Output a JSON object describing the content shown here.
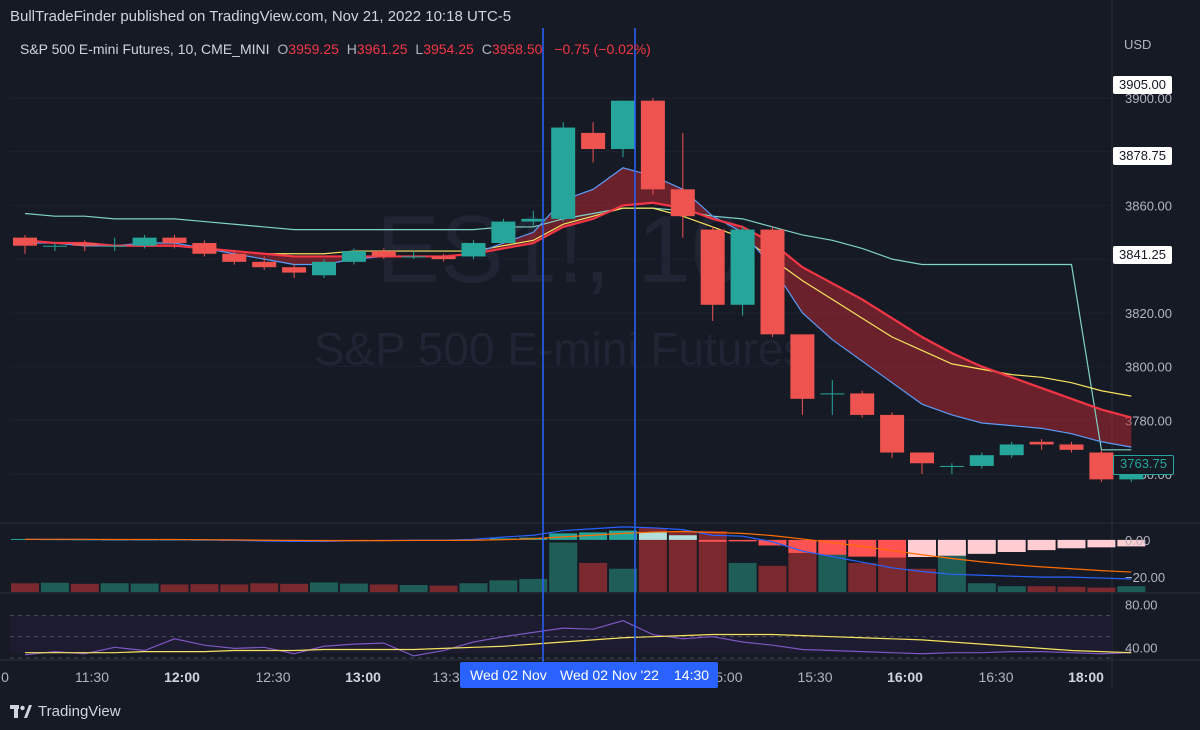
{
  "header": {
    "published_by": "BullTradeFinder published on TradingView.com, Nov 21, 2022 10:18 UTC-5"
  },
  "symbol": {
    "name": "S&P 500 E-mini Futures, 10, CME_MINI",
    "open": "3959.25",
    "high": "3961.25",
    "low": "3954.25",
    "close": "3958.50",
    "change": "−0.75 (−0.02%)",
    "currency": "USD"
  },
  "watermark": {
    "ticker": "ES1!, 10",
    "name": "S&P 500 E-mini Futures"
  },
  "price_tags": [
    {
      "label": "3905.00",
      "style": "white",
      "price": 3905
    },
    {
      "label": "3878.75",
      "style": "white",
      "price": 3878.75
    },
    {
      "label": "3841.25",
      "style": "white",
      "price": 3841.25
    },
    {
      "label": "3763.75",
      "style": "dark",
      "price": 3763.75
    }
  ],
  "crosshair": {
    "date_left": "Wed 02 Nov",
    "date_right": "Wed 02 Nov '22",
    "time_right": "14:30"
  },
  "footer": {
    "brand": "TradingView"
  },
  "colors": {
    "background": "#161a25",
    "up": "#26a69a",
    "down": "#ef5350",
    "crosshair": "#2962ff",
    "ema_yellow": "#f7e35f",
    "ema_teal": "#7fd3c6",
    "ema_blue": "#5b9cf6",
    "ema_red": "#f23645",
    "rsi": "#7e57c2"
  },
  "chart_data": [
    {
      "type": "candlestick",
      "title": "S&P 500 E-mini Futures, 10, CME_MINI",
      "ylabel": "USD",
      "y_axis_ticks": [
        3760,
        3780,
        3800,
        3820,
        3840,
        3860,
        3880,
        3900
      ],
      "x_axis_ticks": [
        "0",
        "11:30",
        "12:00",
        "12:30",
        "13:00",
        "13:3",
        "15:00",
        "15:30",
        "16:00",
        "16:30",
        "18:00"
      ],
      "ylim": [
        3752,
        3910
      ],
      "candles": [
        {
          "o": 3848,
          "h": 3849,
          "l": 3842,
          "c": 3845
        },
        {
          "o": 3845,
          "h": 3846,
          "l": 3843,
          "c": 3845
        },
        {
          "o": 3846,
          "h": 3847,
          "l": 3843,
          "c": 3845
        },
        {
          "o": 3845,
          "h": 3848,
          "l": 3843,
          "c": 3845
        },
        {
          "o": 3845,
          "h": 3849,
          "l": 3844,
          "c": 3848
        },
        {
          "o": 3848,
          "h": 3849,
          "l": 3844,
          "c": 3846
        },
        {
          "o": 3846,
          "h": 3847,
          "l": 3841,
          "c": 3842
        },
        {
          "o": 3842,
          "h": 3843,
          "l": 3838,
          "c": 3839
        },
        {
          "o": 3839,
          "h": 3841,
          "l": 3836,
          "c": 3837
        },
        {
          "o": 3837,
          "h": 3838,
          "l": 3833,
          "c": 3835
        },
        {
          "o": 3834,
          "h": 3840,
          "l": 3833,
          "c": 3839
        },
        {
          "o": 3839,
          "h": 3844,
          "l": 3838,
          "c": 3843
        },
        {
          "o": 3843,
          "h": 3844,
          "l": 3840,
          "c": 3841
        },
        {
          "o": 3841,
          "h": 3843,
          "l": 3840,
          "c": 3841
        },
        {
          "o": 3841,
          "h": 3842,
          "l": 3839,
          "c": 3840
        },
        {
          "o": 3841,
          "h": 3847,
          "l": 3840,
          "c": 3846
        },
        {
          "o": 3846,
          "h": 3855,
          "l": 3846,
          "c": 3854
        },
        {
          "o": 3854,
          "h": 3858,
          "l": 3852,
          "c": 3855
        },
        {
          "o": 3855,
          "h": 3891,
          "l": 3854,
          "c": 3889
        },
        {
          "o": 3887,
          "h": 3891,
          "l": 3876,
          "c": 3881
        },
        {
          "o": 3881,
          "h": 3899,
          "l": 3878,
          "c": 3899
        },
        {
          "o": 3899,
          "h": 3900,
          "l": 3864,
          "c": 3866
        },
        {
          "o": 3866,
          "h": 3887,
          "l": 3848,
          "c": 3856
        },
        {
          "o": 3851,
          "h": 3852,
          "l": 3817,
          "c": 3823
        },
        {
          "o": 3823,
          "h": 3852,
          "l": 3819,
          "c": 3851
        },
        {
          "o": 3851,
          "h": 3852,
          "l": 3811,
          "c": 3812
        },
        {
          "o": 3812,
          "h": 3812,
          "l": 3782,
          "c": 3788
        },
        {
          "o": 3790,
          "h": 3795,
          "l": 3782,
          "c": 3790
        },
        {
          "o": 3790,
          "h": 3791,
          "l": 3781,
          "c": 3782
        },
        {
          "o": 3782,
          "h": 3783,
          "l": 3766,
          "c": 3768
        },
        {
          "o": 3768,
          "h": 3768,
          "l": 3760,
          "c": 3764
        },
        {
          "o": 3763,
          "h": 3764,
          "l": 3760,
          "c": 3763
        },
        {
          "o": 3763,
          "h": 3768,
          "l": 3762,
          "c": 3767
        },
        {
          "o": 3767,
          "h": 3772,
          "l": 3766,
          "c": 3771
        },
        {
          "o": 3772,
          "h": 3773,
          "l": 3769,
          "c": 3771
        },
        {
          "o": 3771,
          "h": 3772,
          "l": 3768,
          "c": 3769
        },
        {
          "o": 3768,
          "h": 3769,
          "l": 3757,
          "c": 3758
        },
        {
          "o": 3758,
          "h": 3766,
          "l": 3757,
          "c": 3763.75
        }
      ],
      "ema_yellow": [
        3847,
        3846,
        3845,
        3845,
        3845,
        3845,
        3844,
        3843,
        3842,
        3842,
        3842,
        3843,
        3843,
        3843,
        3843,
        3843,
        3845,
        3847,
        3853,
        3856,
        3859,
        3859,
        3856,
        3852,
        3848,
        3840,
        3832,
        3825,
        3818,
        3811,
        3806,
        3801,
        3799,
        3797,
        3796,
        3794,
        3791,
        3789
      ],
      "ema_teal": [
        3857,
        3856,
        3856,
        3855,
        3855,
        3855,
        3854,
        3853,
        3852,
        3851,
        3851,
        3851,
        3851,
        3851,
        3851,
        3851,
        3852,
        3852,
        3855,
        3857,
        3859,
        3859,
        3858,
        3856,
        3855,
        3852,
        3849,
        3847,
        3844,
        3840,
        3838,
        3838,
        3838,
        3838,
        3838,
        3838,
        3769,
        3769
      ],
      "ema_blue": [
        3846,
        3846,
        3845,
        3845,
        3846,
        3846,
        3844,
        3842,
        3840,
        3838,
        3838,
        3840,
        3841,
        3841,
        3841,
        3842,
        3846,
        3850,
        3862,
        3866,
        3874,
        3871,
        3866,
        3856,
        3850,
        3837,
        3820,
        3810,
        3802,
        3794,
        3786,
        3782,
        3779,
        3778,
        3777,
        3775,
        3772,
        3770
      ],
      "ema_red": [
        3847,
        3846,
        3846,
        3845,
        3845,
        3845,
        3844,
        3843,
        3842,
        3841,
        3841,
        3841,
        3841,
        3841,
        3841,
        3842,
        3844,
        3846,
        3852,
        3855,
        3860,
        3861,
        3859,
        3855,
        3852,
        3846,
        3837,
        3831,
        3825,
        3818,
        3811,
        3805,
        3800,
        3796,
        3792,
        3788,
        3784,
        3781
      ]
    },
    {
      "type": "bar",
      "title": "MACD",
      "y_axis_ticks": [
        0,
        -20
      ],
      "ylim": [
        -28,
        8
      ],
      "histogram": [
        0.5,
        0.4,
        0.3,
        0.2,
        0.2,
        0.2,
        0.1,
        -0.1,
        -0.3,
        -0.4,
        -0.4,
        -0.2,
        -0.1,
        -0.1,
        -0.1,
        0.2,
        0.8,
        1.2,
        3.5,
        4.0,
        5.0,
        4.0,
        2.5,
        -1.0,
        -0.8,
        -3.0,
        -7.0,
        -8.0,
        -9.0,
        -9.5,
        -9.2,
        -8.5,
        -7.5,
        -6.5,
        -5.5,
        -4.5,
        -4.0,
        -3.5
      ],
      "macd": [
        0.3,
        0.2,
        0.2,
        0.1,
        0.1,
        0.1,
        0.0,
        -0.3,
        -0.6,
        -0.8,
        -0.8,
        -0.5,
        -0.3,
        -0.2,
        -0.2,
        0.3,
        1.5,
        2.5,
        5.0,
        6.0,
        7.0,
        6.5,
        5.5,
        2.5,
        2.0,
        -1.0,
        -6.0,
        -9.0,
        -12.0,
        -15.0,
        -17.0,
        -18.5,
        -19.0,
        -19.5,
        -20.0,
        -20.0,
        -20.5,
        -21.0
      ],
      "signal": [
        0.3,
        0.3,
        0.3,
        0.2,
        0.2,
        0.2,
        0.1,
        0.0,
        -0.2,
        -0.3,
        -0.4,
        -0.4,
        -0.4,
        -0.3,
        -0.3,
        -0.2,
        0.1,
        0.6,
        1.6,
        2.5,
        3.5,
        4.2,
        4.5,
        4.0,
        3.5,
        2.3,
        0.5,
        -1.5,
        -3.5,
        -5.8,
        -8.0,
        -10.0,
        -11.8,
        -13.3,
        -14.5,
        -15.5,
        -16.5,
        -17.3
      ],
      "volume": [
        300,
        320,
        280,
        300,
        290,
        260,
        270,
        260,
        300,
        280,
        330,
        290,
        260,
        240,
        220,
        300,
        400,
        450,
        1700,
        1000,
        800,
        2200,
        2100,
        2100,
        1000,
        900,
        1400,
        1300,
        1000,
        1200,
        800,
        1700,
        300,
        200,
        200,
        180,
        150,
        200
      ]
    },
    {
      "type": "line",
      "title": "RSI",
      "y_axis_ticks": [
        80,
        40
      ],
      "ylim": [
        30,
        90
      ],
      "rsi": [
        33,
        36,
        34,
        40,
        37,
        48,
        42,
        39,
        40,
        34,
        41,
        43,
        44,
        32,
        37,
        45,
        50,
        54,
        58,
        57,
        65,
        52,
        48,
        50,
        45,
        42,
        38,
        37,
        36,
        35,
        34,
        35,
        35,
        36,
        36,
        35,
        34,
        35
      ],
      "rsi_ma": [
        35,
        35,
        35,
        35,
        36,
        36,
        36,
        37,
        37,
        37,
        38,
        38,
        38,
        38,
        39,
        40,
        41,
        43,
        45,
        47,
        49,
        50,
        51,
        52,
        52,
        52,
        51,
        50,
        49,
        48,
        47,
        45,
        43,
        41,
        39,
        37,
        36,
        35
      ]
    }
  ]
}
